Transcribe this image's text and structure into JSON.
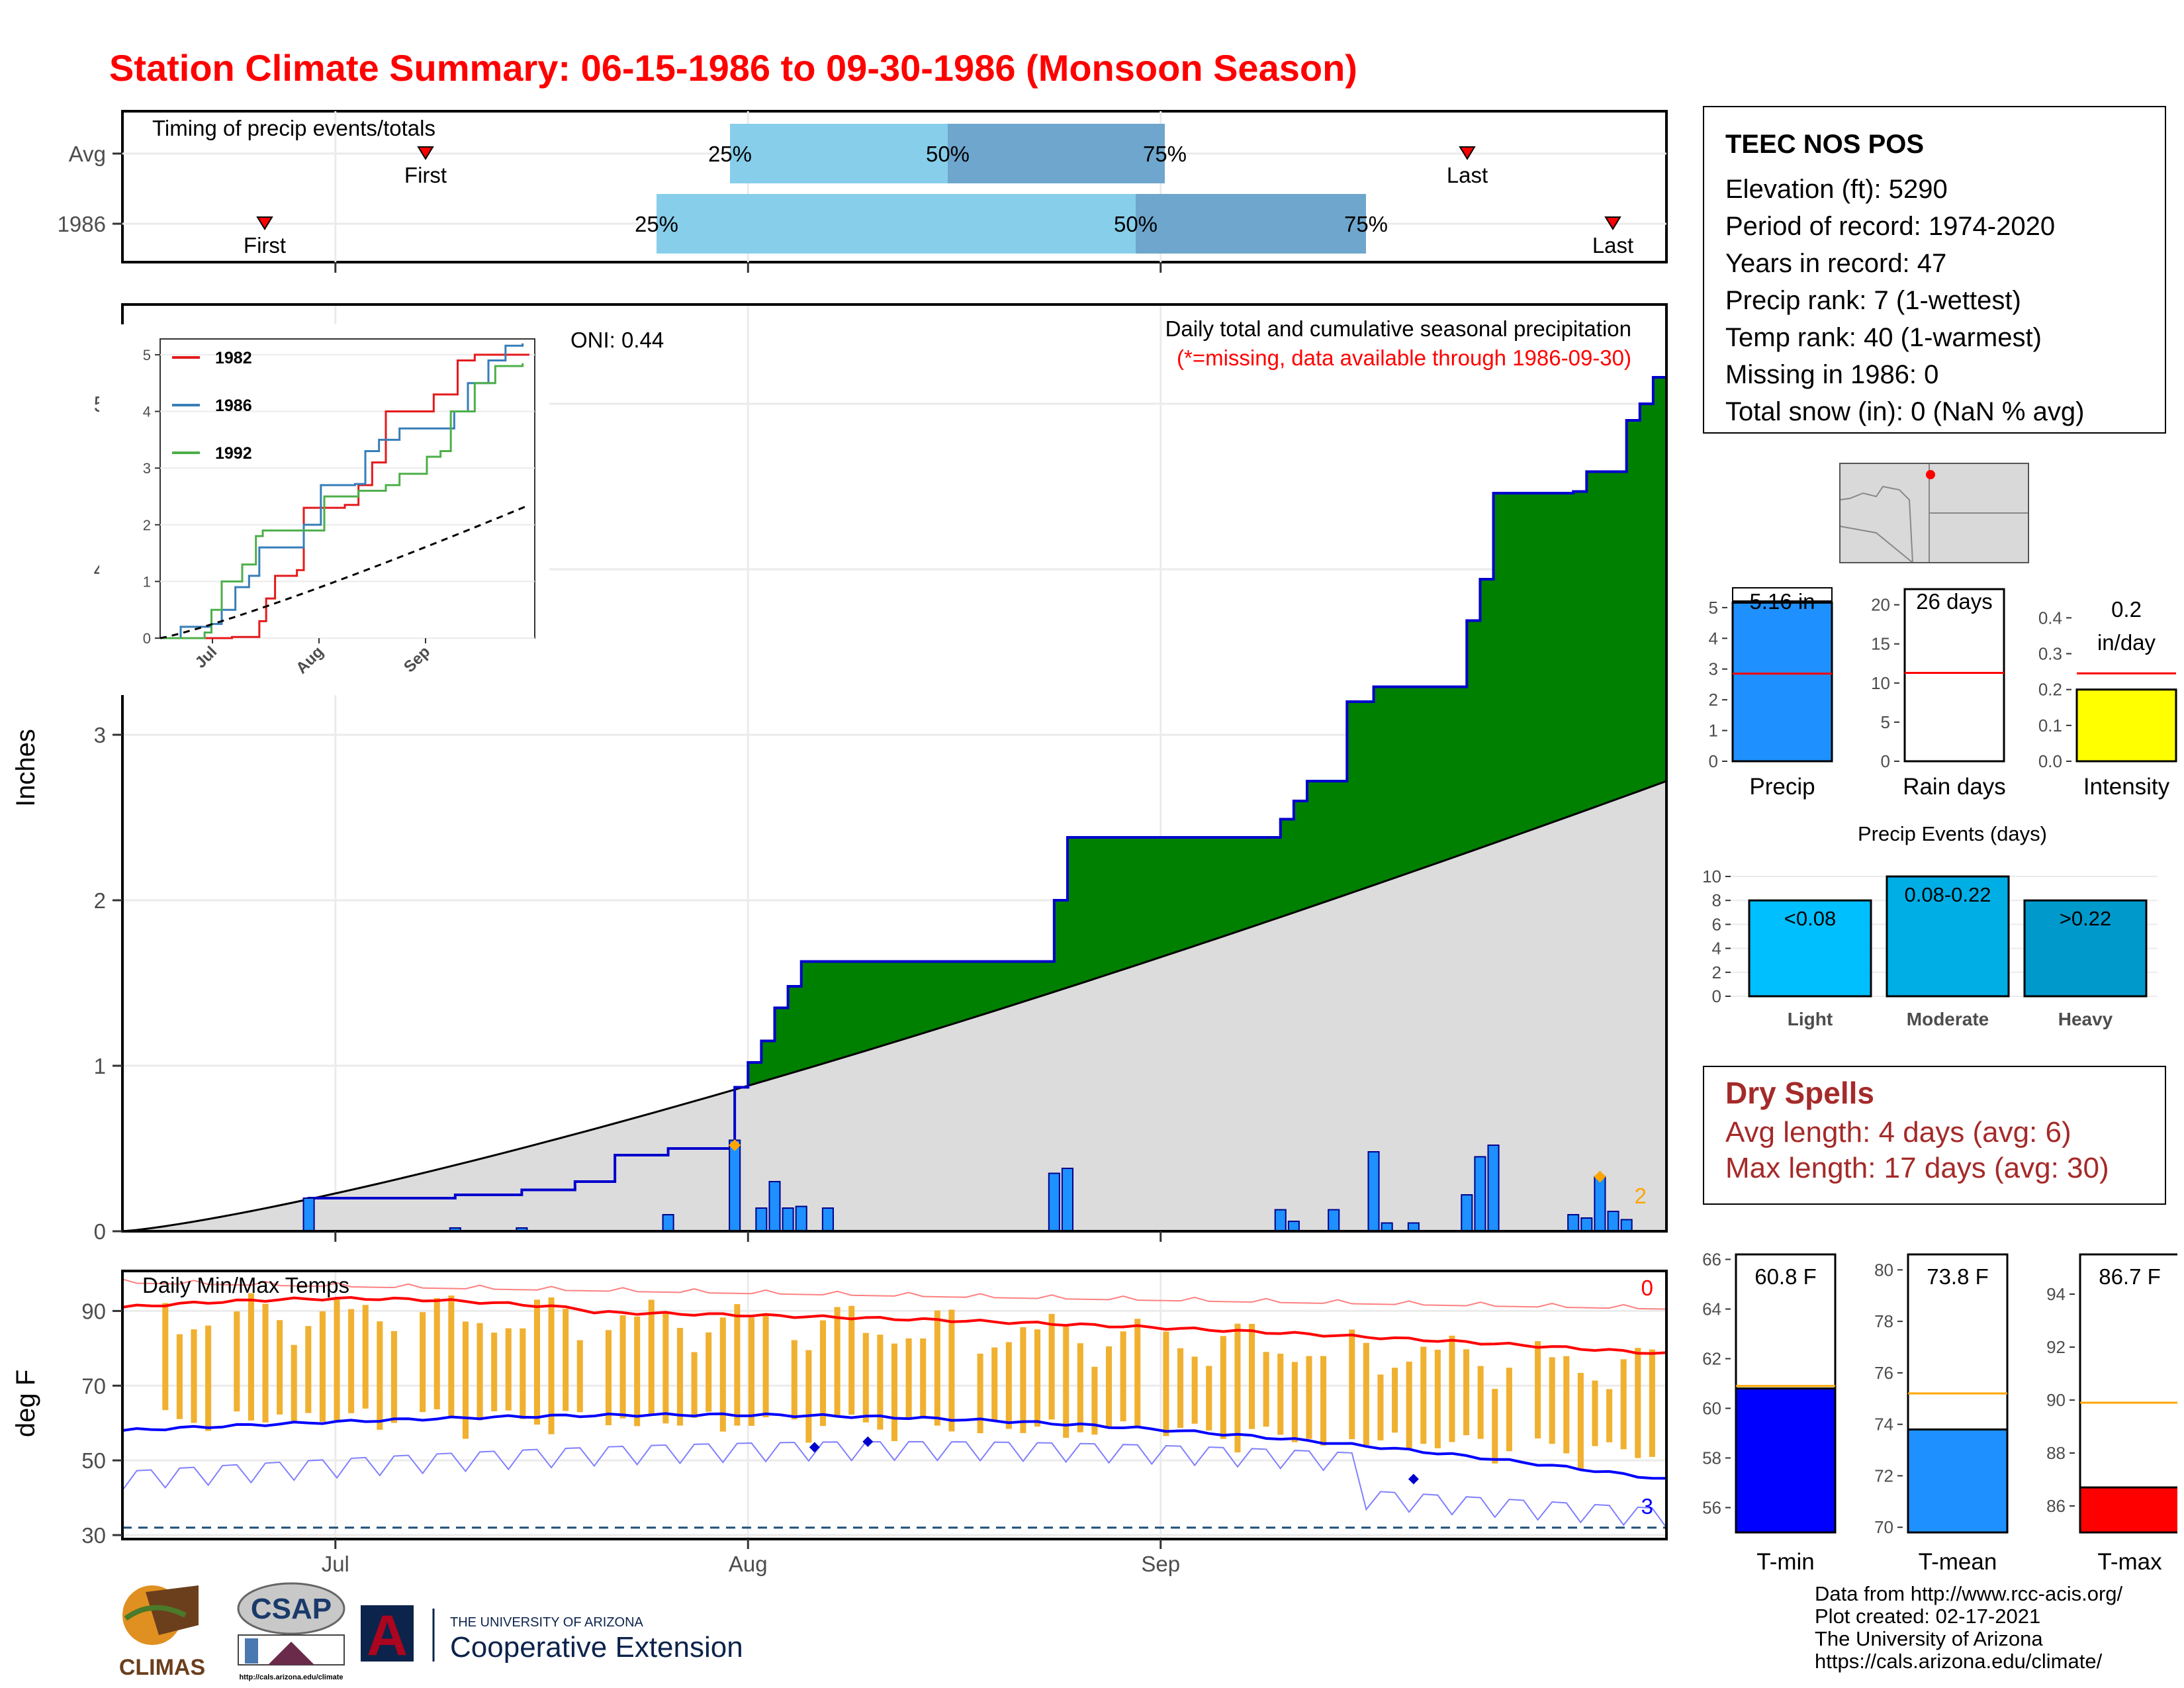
{
  "title": "Station Climate Summary: 06-15-1986 to 09-30-1986 (Monsoon Season)",
  "timing": {
    "label": "Timing of precip events/totals",
    "rows": [
      {
        "name": "Avg",
        "first": "First",
        "last": "Last",
        "p25": "25%",
        "p50": "50%",
        "p75": "75%"
      },
      {
        "name": "1986",
        "first": "First",
        "last": "Last",
        "p25": "25%",
        "p50": "50%",
        "p75": "75%"
      }
    ]
  },
  "precip": {
    "title": "Daily total and cumulative seasonal precipitation",
    "subtitle": "(*=missing, data available through 1986-09-30)",
    "oni": "ONI: 0.44",
    "ylabel": "Inches",
    "count_label": "2"
  },
  "inset": {
    "series": [
      "1982",
      "1986",
      "1992"
    ],
    "colors": [
      "#e41a1c",
      "#377eb8",
      "#4daf4a"
    ],
    "xticks": [
      "Jul",
      "Aug",
      "Sep"
    ]
  },
  "temps": {
    "title": "Daily Min/Max Temps",
    "ylabel": "deg F",
    "count_high": "0",
    "count_low": "3",
    "xticks": [
      "Jul",
      "Aug",
      "Sep"
    ]
  },
  "station": {
    "name": "TEEC NOS POS",
    "elevation": "Elevation (ft): 5290",
    "period": "Period of record: 1974-2020",
    "years": "Years in record: 47",
    "precip_rank": "Precip rank: 7 (1-wettest)",
    "temp_rank": "Temp rank: 40 (1-warmest)",
    "missing": "Missing in 1986: 0",
    "snow": "Total snow (in): 0 (NaN % avg)"
  },
  "bars": {
    "precip": {
      "label": "Precip",
      "value_text": "5.16 in",
      "ticks": [
        "0",
        "1",
        "2",
        "3",
        "4",
        "5"
      ]
    },
    "raindays": {
      "label": "Rain days",
      "value_text": "26 days",
      "ticks": [
        "0",
        "5",
        "10",
        "15",
        "20"
      ]
    },
    "intensity": {
      "label": "Intensity",
      "value_text1": "0.2",
      "value_text2": "in/day",
      "ticks": [
        "0.0",
        "0.1",
        "0.2",
        "0.3",
        "0.4"
      ]
    }
  },
  "events": {
    "title": "Precip Events (days)",
    "categories": [
      "Light",
      "Moderate",
      "Heavy"
    ],
    "labels": [
      "<0.08",
      "0.08-0.22",
      ">0.22"
    ],
    "ticks": [
      "0",
      "2",
      "4",
      "6",
      "8",
      "10"
    ]
  },
  "dry": {
    "title": "Dry Spells",
    "avg": "Avg length: 4 days (avg: 6)",
    "max": "Max length: 17 days (avg: 30)"
  },
  "tbars": {
    "tmin": {
      "label": "T-min",
      "value_text": "60.8 F",
      "ticks": [
        "56",
        "58",
        "60",
        "62",
        "64",
        "66"
      ]
    },
    "tmean": {
      "label": "T-mean",
      "value_text": "73.8 F",
      "ticks": [
        "70",
        "72",
        "74",
        "76",
        "78",
        "80"
      ]
    },
    "tmax": {
      "label": "T-max",
      "value_text": "86.7 F",
      "ticks": [
        "86",
        "88",
        "90",
        "92",
        "94"
      ]
    }
  },
  "credits": {
    "line1": "Data from http://www.rcc-acis.org/",
    "line2": "Plot created: 02-17-2021",
    "line3": "The University of Arizona",
    "line4": "https://cals.arizona.edu/climate/"
  },
  "logos": {
    "climas": "CLIMAS",
    "csap": "CSAP",
    "csap_url": "http://cals.arizona.edu/climate",
    "ua_small": "THE UNIVERSITY OF ARIZONA",
    "ua_big": "Cooperative Extension",
    "ua_letter": "A"
  },
  "chart_data": [
    {
      "type": "area",
      "title": "Daily total and cumulative seasonal precipitation",
      "ylabel": "Inches",
      "ylim": [
        0,
        5.6
      ],
      "x_range": [
        "1986-06-15",
        "1986-09-30"
      ],
      "cumulative_1986_steps": [
        [
          "06-15",
          0.0
        ],
        [
          "06-29",
          0.2
        ],
        [
          "07-10",
          0.22
        ],
        [
          "07-15",
          0.25
        ],
        [
          "07-19",
          0.3
        ],
        [
          "07-22",
          0.46
        ],
        [
          "07-26",
          0.5
        ],
        [
          "07-31",
          0.87
        ],
        [
          "08-01",
          1.02
        ],
        [
          "08-02",
          1.15
        ],
        [
          "08-03",
          1.35
        ],
        [
          "08-04",
          1.48
        ],
        [
          "08-05",
          1.63
        ],
        [
          "08-24",
          2.0
        ],
        [
          "08-25",
          2.38
        ],
        [
          "09-10",
          2.49
        ],
        [
          "09-11",
          2.6
        ],
        [
          "09-12",
          2.72
        ],
        [
          "09-15",
          3.2
        ],
        [
          "09-17",
          3.29
        ],
        [
          "09-24",
          3.69
        ],
        [
          "09-25",
          3.94
        ],
        [
          "09-26",
          4.46
        ],
        [
          "10-02",
          4.47
        ],
        [
          "10-03",
          4.59
        ],
        [
          "10-06",
          4.9
        ],
        [
          "10-07",
          5.0
        ],
        [
          "10-08",
          5.16
        ]
      ],
      "daily_precip_1986": [
        [
          "06-29",
          0.2
        ],
        [
          "07-10",
          0.02
        ],
        [
          "07-15",
          0.02
        ],
        [
          "07-26",
          0.1
        ],
        [
          "07-31",
          0.55
        ],
        [
          "08-02",
          0.14
        ],
        [
          "08-03",
          0.3
        ],
        [
          "08-04",
          0.14
        ],
        [
          "08-05",
          0.15
        ],
        [
          "08-07",
          0.14
        ],
        [
          "08-24",
          0.35
        ],
        [
          "08-25",
          0.38
        ],
        [
          "09-10",
          0.13
        ],
        [
          "09-11",
          0.06
        ],
        [
          "09-14",
          0.13
        ],
        [
          "09-17",
          0.48
        ],
        [
          "09-18",
          0.05
        ],
        [
          "09-20",
          0.05
        ],
        [
          "09-24",
          0.22
        ],
        [
          "09-25",
          0.45
        ],
        [
          "09-26",
          0.52
        ],
        [
          "10-02",
          0.1
        ],
        [
          "10-03",
          0.08
        ],
        [
          "10-04",
          0.33
        ],
        [
          "10-05",
          0.12
        ],
        [
          "10-06",
          0.07
        ]
      ],
      "cumulative_avg_end": 2.72
    },
    {
      "type": "line",
      "series": [
        {
          "name": "1982"
        },
        {
          "name": "1986"
        },
        {
          "name": "1992"
        }
      ],
      "ylim": [
        0,
        5.2
      ],
      "xticks": [
        "Jul",
        "Aug",
        "Sep"
      ]
    },
    {
      "type": "line",
      "title": "Daily Min/Max Temps",
      "ylabel": "deg F",
      "ylim": [
        30,
        100
      ],
      "yticks": [
        30,
        50,
        70,
        90
      ],
      "avg_max_start": 91,
      "avg_max_end": 79,
      "avg_min_start": 58,
      "avg_min_end": 48
    },
    {
      "type": "bar",
      "title": "Precip Events (days)",
      "categories": [
        "Light",
        "Moderate",
        "Heavy"
      ],
      "values": [
        8,
        10,
        8
      ],
      "ylim": [
        0,
        10
      ]
    },
    {
      "type": "bar",
      "categories": [
        "Precip",
        "Rain days",
        "Intensity"
      ],
      "values": [
        5.16,
        26,
        0.2
      ],
      "averages": [
        2.85,
        11.3,
        0.245
      ]
    },
    {
      "type": "bar",
      "categories": [
        "T-min",
        "T-mean",
        "T-max"
      ],
      "values": [
        60.8,
        73.8,
        86.7
      ],
      "averages": [
        60.9,
        75.2,
        89.9
      ]
    }
  ]
}
